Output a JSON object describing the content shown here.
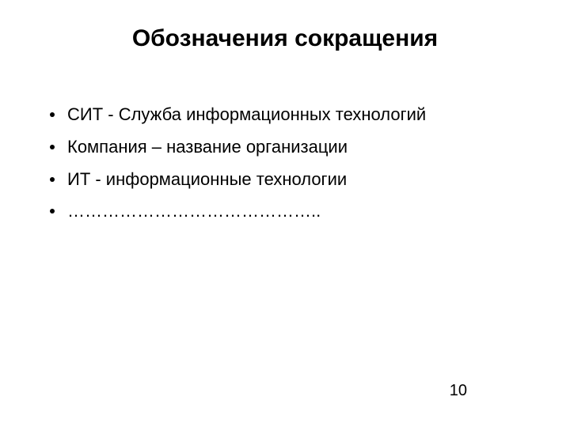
{
  "slide": {
    "title": "Обозначения  сокращения",
    "bullets": [
      "СИТ - Служба информационных технологий",
      "Компания – название организации",
      "ИТ - информационные технологии",
      "…………………………………….."
    ],
    "page_number": "10",
    "styling": {
      "background_color": "#ffffff",
      "text_color": "#000000",
      "title_fontsize": 30,
      "title_fontweight": "bold",
      "body_fontsize": 22,
      "pagenum_fontsize": 20,
      "font_family": "Arial",
      "bullet_marker": "disc",
      "bullet_color": "#000000"
    }
  }
}
